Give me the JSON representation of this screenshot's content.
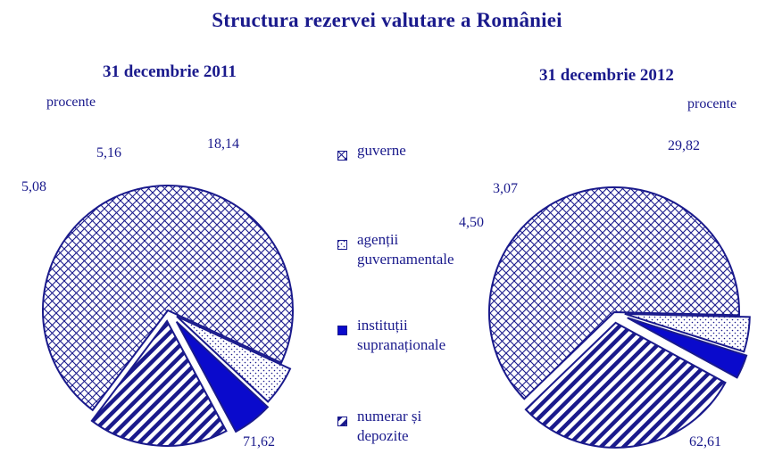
{
  "title": "Structura rezervei valutare a României",
  "unit_label": "procente",
  "colors": {
    "ink": "#1a1a8c",
    "solid": "#0a0acc"
  },
  "legend": [
    {
      "key": "guverne",
      "label": "guverne",
      "pattern": "crosshatch-dense",
      "icon": "crosshatch-swatch"
    },
    {
      "key": "agentii",
      "label": "agenții\nguvernamentale",
      "pattern": "dots",
      "icon": "dots-swatch"
    },
    {
      "key": "institutii",
      "label": "instituții\nsupranaționale",
      "pattern": "solid",
      "icon": "solid-swatch"
    },
    {
      "key": "numerar",
      "label": "numerar și\ndepozite",
      "pattern": "diagonal-stripes",
      "icon": "stripes-swatch"
    }
  ],
  "chart_data": [
    {
      "type": "pie",
      "title": "31 decembrie  2011",
      "unit": "procente",
      "slices": [
        {
          "category": "guverne",
          "value": 71.62,
          "label": "71,62"
        },
        {
          "category": "agenții guvernamentale",
          "value": 5.08,
          "label": "5,08"
        },
        {
          "category": "instituții supranaționale",
          "value": 5.16,
          "label": "5,16"
        },
        {
          "category": "numerar și depozite",
          "value": 18.14,
          "label": "18,14"
        }
      ]
    },
    {
      "type": "pie",
      "title": "31 decembrie  2012",
      "unit": "procente",
      "slices": [
        {
          "category": "guverne",
          "value": 62.61,
          "label": "62,61"
        },
        {
          "category": "agenții guvernamentale",
          "value": 4.5,
          "label": "4,50"
        },
        {
          "category": "instituții supranaționale",
          "value": 3.07,
          "label": "3,07"
        },
        {
          "category": "numerar și depozite",
          "value": 29.82,
          "label": "29,82"
        }
      ]
    }
  ]
}
